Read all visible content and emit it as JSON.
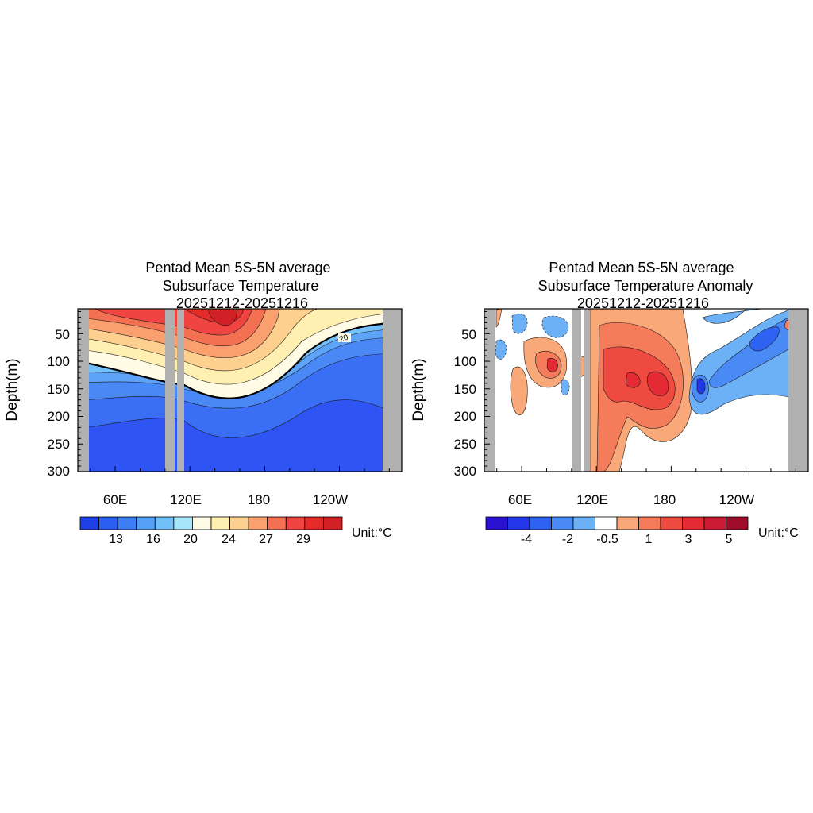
{
  "chart_data": [
    {
      "type": "heatmap",
      "title_lines": [
        "Pentad Mean 5S-5N average",
        "Subsurface Temperature",
        "20251212-20251216"
      ],
      "ylabel": "Depth(m)",
      "y_ticks": [
        50,
        100,
        150,
        200,
        250,
        300
      ],
      "y_tick_labels": [
        "50",
        "100",
        "150",
        "200",
        "250",
        "300"
      ],
      "ylim": [
        300,
        5
      ],
      "x_tick_labels": [
        "60E",
        "120E",
        "180",
        "120W"
      ],
      "x_tick_lon": [
        60,
        120,
        180,
        240
      ],
      "xlim_lon": [
        30,
        290
      ],
      "colorbar_colors": [
        "#1f3fe6",
        "#2a5ef2",
        "#3d7ef5",
        "#55a0f6",
        "#70c0fa",
        "#a6e6fb",
        "#fffbe4",
        "#ffefb0",
        "#fdd090",
        "#f9a06e",
        "#f37052",
        "#ef4442",
        "#e52a2a",
        "#d12026"
      ],
      "colorbar_labels": [
        "13",
        "16",
        "20",
        "24",
        "27",
        "29"
      ],
      "colorbar_label_slots": [
        2,
        4,
        6,
        8,
        10,
        12
      ],
      "contour_label": "20",
      "unit_label": "Unit:°C",
      "land_bands_lon": [
        [
          30,
          35
        ],
        [
          100,
          107
        ],
        [
          110,
          114
        ],
        [
          283,
          290
        ]
      ]
    },
    {
      "type": "heatmap",
      "title_lines": [
        "Pentad Mean 5S-5N average",
        "Subsurface Temperature Anomaly",
        "20251212-20251216"
      ],
      "ylabel": "Depth(m)",
      "y_ticks": [
        50,
        100,
        150,
        200,
        250,
        300
      ],
      "y_tick_labels": [
        "50",
        "100",
        "150",
        "200",
        "250",
        "300"
      ],
      "ylim": [
        300,
        5
      ],
      "x_tick_labels": [
        "60E",
        "120E",
        "180",
        "120W"
      ],
      "x_tick_lon": [
        60,
        120,
        180,
        240
      ],
      "xlim_lon": [
        30,
        290
      ],
      "colorbar_colors": [
        "#2a12d0",
        "#2236ea",
        "#2e62f2",
        "#4a8af4",
        "#6cb0f6",
        "#ffffff",
        "#f9a87a",
        "#f47c5a",
        "#ef4a40",
        "#e42a34",
        "#cc1c34",
        "#a00c2c"
      ],
      "colorbar_labels": [
        "-4",
        "-2",
        "-0.5",
        "1",
        "3",
        "5"
      ],
      "colorbar_label_slots": [
        2,
        3,
        4,
        5,
        6,
        7
      ],
      "unit_label": "Unit:°C",
      "land_bands_lon": [
        [
          30,
          35
        ],
        [
          105,
          113
        ],
        [
          116,
          120
        ],
        [
          283,
          290
        ]
      ]
    }
  ]
}
